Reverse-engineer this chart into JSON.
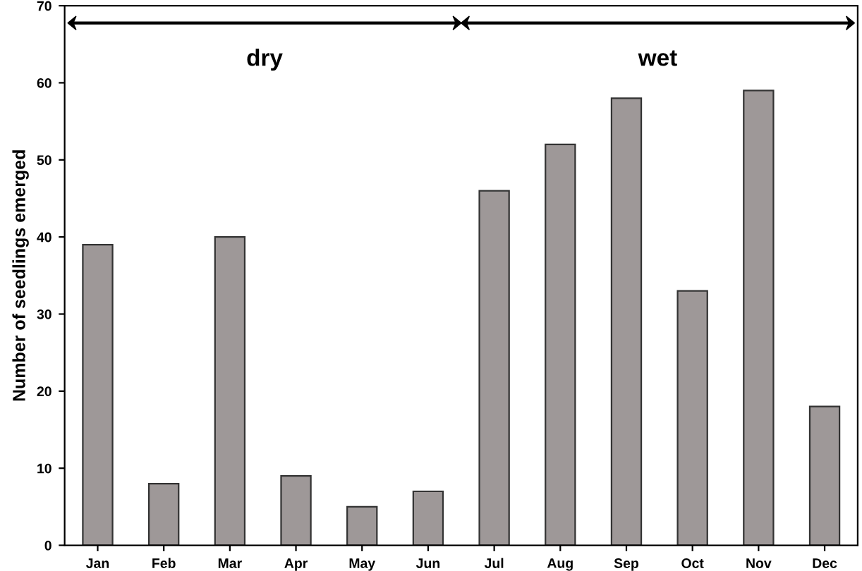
{
  "chart_data": {
    "type": "bar",
    "ylabel": "Number of seedlings emerged",
    "categories": [
      "Jan",
      "Feb",
      "Mar",
      "Apr",
      "May",
      "Jun",
      "Jul",
      "Aug",
      "Sep",
      "Oct",
      "Nov",
      "Dec"
    ],
    "values": [
      39,
      8,
      40,
      9,
      5,
      7,
      46,
      52,
      58,
      33,
      59,
      18
    ],
    "color": "#9e9898",
    "ylim": [
      0,
      70
    ],
    "yticks": [
      0,
      10,
      20,
      30,
      40,
      50,
      60,
      70
    ],
    "grid": false,
    "annotations": [
      "dry",
      "wet"
    ]
  }
}
